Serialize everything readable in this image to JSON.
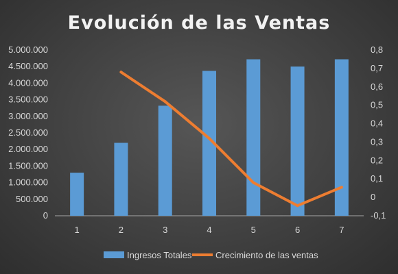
{
  "chart_data": {
    "type": "bar",
    "title": "Evolución de las Ventas",
    "categories": [
      "1",
      "2",
      "3",
      "4",
      "5",
      "6",
      "7"
    ],
    "series": [
      {
        "name": "Ingresos Totales",
        "type": "bar",
        "axis": "left",
        "color": "#5b9bd5",
        "values": [
          1300000,
          2200000,
          3320000,
          4370000,
          4720000,
          4500000,
          4720000
        ]
      },
      {
        "name": "Crecimiento de las ventas",
        "type": "line",
        "axis": "right",
        "color": "#ed7d31",
        "values": [
          null,
          0.68,
          0.52,
          0.32,
          0.08,
          -0.045,
          0.055
        ]
      }
    ],
    "y_left": {
      "min": 0,
      "max": 5000000,
      "step": 500000,
      "tick_labels": [
        "0",
        "500.000",
        "1.000.000",
        "1.500.000",
        "2.000.000",
        "2.500.000",
        "3.000.000",
        "3.500.000",
        "4.000.000",
        "4.500.000",
        "5.000.000"
      ]
    },
    "y_right": {
      "min": -0.1,
      "max": 0.8,
      "step": 0.1,
      "tick_labels": [
        "-0,1",
        "0",
        "0,1",
        "0,2",
        "0,3",
        "0,4",
        "0,5",
        "0,6",
        "0,7",
        "0,8"
      ]
    },
    "grid": false,
    "legend_position": "bottom"
  }
}
